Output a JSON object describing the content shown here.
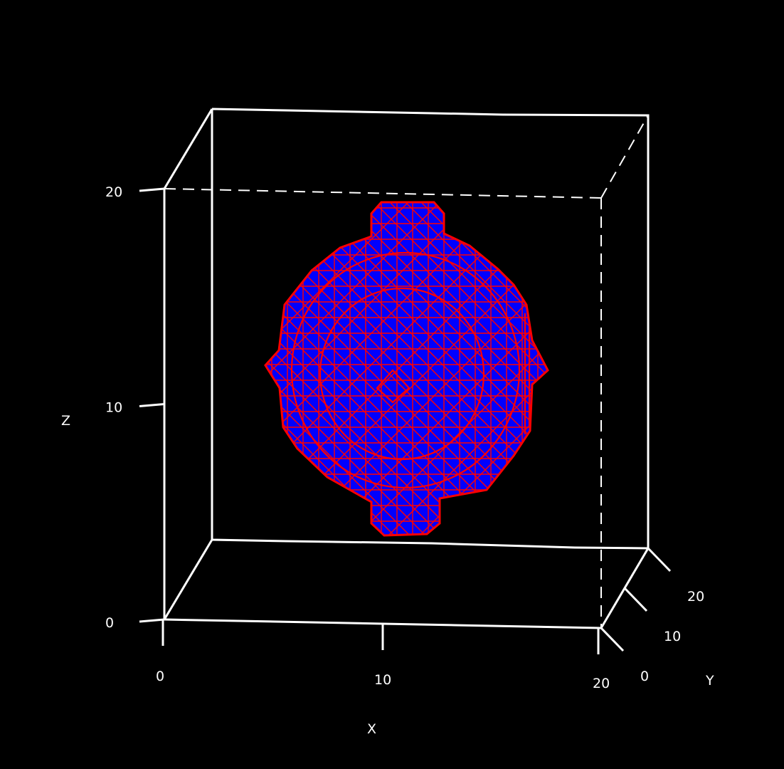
{
  "chart_data": {
    "type": "isosurface-3d",
    "title": "",
    "surface": {
      "shape": "sphere with six polar knobs",
      "face_color": "#0000ff",
      "edge_color": "#ff0000"
    },
    "x_axis": {
      "label": "X",
      "range": [
        0,
        20
      ],
      "ticks": [
        0,
        10,
        20
      ],
      "tick_labels": [
        "0",
        "10",
        "20"
      ]
    },
    "y_axis": {
      "label": "Y",
      "range": [
        0,
        20
      ],
      "ticks": [
        0,
        10,
        20
      ],
      "tick_labels": [
        "0",
        "10",
        "20"
      ]
    },
    "z_axis": {
      "label": "Z",
      "range": [
        0,
        20
      ],
      "ticks": [
        0,
        10,
        20
      ],
      "tick_labels": [
        "0",
        "10",
        "20"
      ]
    },
    "box": {
      "color": "#ffffff",
      "hidden_edges": "dashed"
    }
  }
}
